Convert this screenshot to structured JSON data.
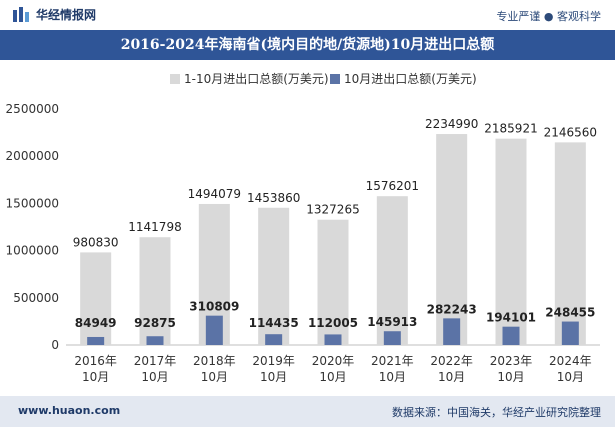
{
  "header": {
    "brand": "华经情报网",
    "tagline": "专业严谨 ● 客观科学"
  },
  "footer": {
    "website": "www.huaon.com",
    "source": "数据来源：中国海关，华经产业研究院整理"
  },
  "colors": {
    "title_bar": "#2f5597",
    "series_ytd": "#d9d9d9",
    "series_month": "#5b73a6"
  },
  "chart_data": {
    "type": "bar",
    "title": "2016-2024年海南省(境内目的地/货源地)10月进出口总额",
    "categories": [
      [
        "2016年",
        "10月"
      ],
      [
        "2017年",
        "10月"
      ],
      [
        "2018年",
        "10月"
      ],
      [
        "2019年",
        "10月"
      ],
      [
        "2020年",
        "10月"
      ],
      [
        "2021年",
        "10月"
      ],
      [
        "2022年",
        "10月"
      ],
      [
        "2023年",
        "10月"
      ],
      [
        "2024年",
        "10月"
      ]
    ],
    "series": [
      {
        "name": "1-10月进出口总额(万美元)",
        "values": [
          980830,
          1141798,
          1494079,
          1453860,
          1327265,
          1576201,
          2234990,
          2185921,
          2146560
        ]
      },
      {
        "name": "10月进出口总额(万美元)",
        "values": [
          84949,
          92875,
          310809,
          114435,
          112005,
          145913,
          282243,
          194101,
          248455
        ]
      }
    ],
    "ylim": [
      0,
      2500000
    ],
    "yticks": [
      0,
      500000,
      1000000,
      1500000,
      2000000,
      2500000
    ],
    "grid": false,
    "legend": "top-center"
  }
}
